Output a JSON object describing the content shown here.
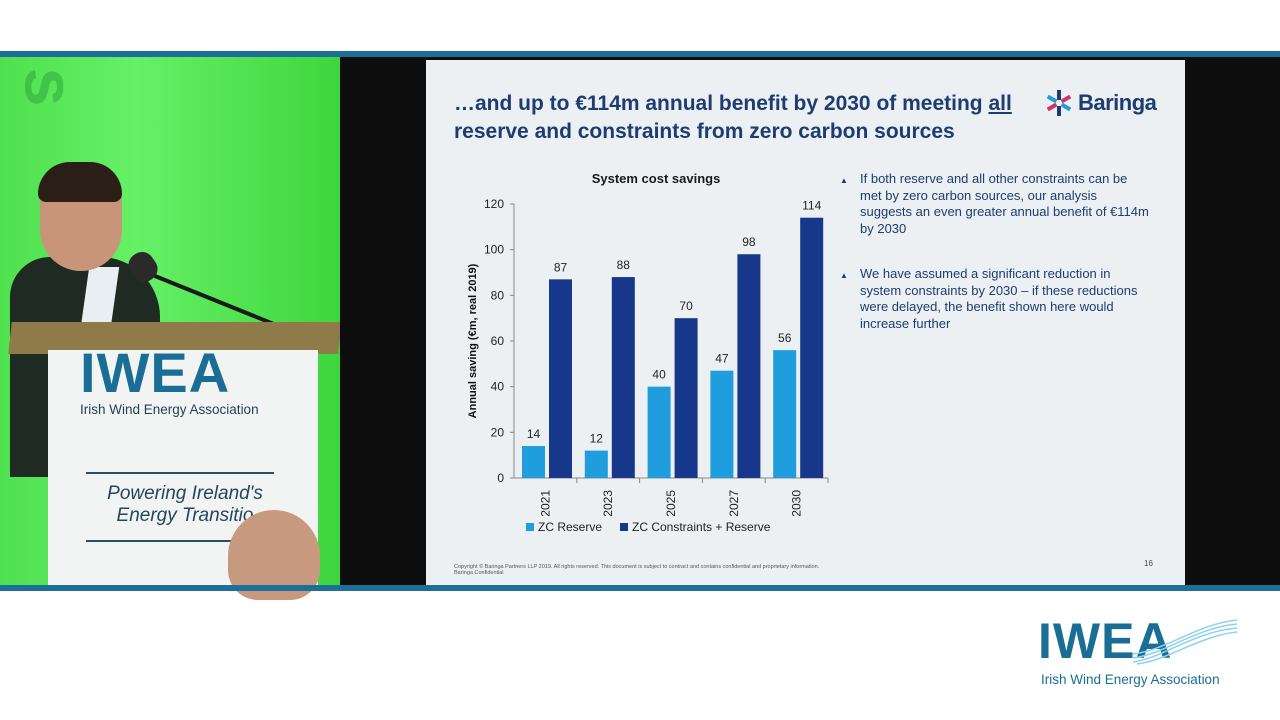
{
  "camera": {
    "podium_logo": "IWEA",
    "podium_subtitle": "Irish Wind Energy Association",
    "podium_slogan": "Powering Ireland's Energy Transitio"
  },
  "slide": {
    "title_part1": "…and up to €114m annual benefit by 2030 of meeting ",
    "title_underlined": "all",
    "title_part2": " reserve and constraints from zero carbon sources",
    "brand": "Baringa",
    "chart_title": "System cost savings",
    "bullets": [
      "If both reserve and all other constraints can be met by zero carbon sources, our analysis suggests an even greater annual benefit of €114m by 2030",
      "We have assumed a significant reduction in system constraints by 2030 – if these reductions were delayed, the benefit shown here would increase further"
    ],
    "footer_line1": "Copyright © Baringa Partners LLP 2019.  All rights reserved. This document is subject to contract and contains confidential and proprietary information.",
    "footer_line2": "Baringa Confidential",
    "page_number": "16"
  },
  "corner_logo": {
    "word": "IWEA",
    "subtitle": "Irish Wind Energy Association"
  },
  "colors": {
    "light_series": "#1f9ddd",
    "dark_series": "#17388a",
    "title_blue": "#1d3c72",
    "frame_line": "#1e6f97"
  },
  "chart_data": {
    "type": "bar",
    "title": "System cost savings",
    "ylabel": "Annual saving (€m, real 2019)",
    "xlabel": "",
    "categories": [
      "2021",
      "2023",
      "2025",
      "2027",
      "2030"
    ],
    "series": [
      {
        "name": "ZC Reserve",
        "values": [
          14,
          12,
          40,
          47,
          56
        ],
        "color": "#1f9ddd"
      },
      {
        "name": "ZC Constraints + Reserve",
        "values": [
          87,
          88,
          70,
          98,
          114
        ],
        "color": "#17388a"
      }
    ],
    "ylim": [
      0,
      120
    ],
    "yticks": [
      0,
      20,
      40,
      60,
      80,
      100,
      120
    ],
    "grid": false,
    "legend": "bottom"
  }
}
